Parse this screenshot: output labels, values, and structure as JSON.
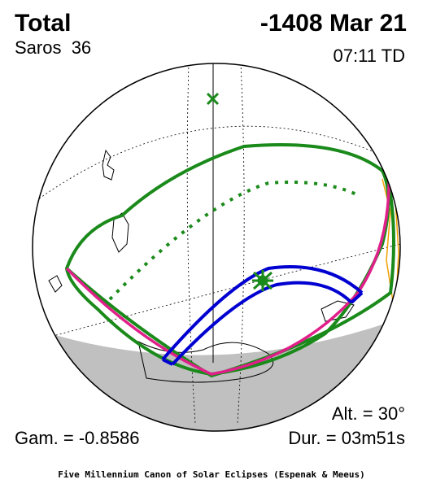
{
  "header": {
    "type": "Total",
    "date": "-1408 Mar 21",
    "saros": "Saros  36",
    "time": "07:11 TD"
  },
  "stats": {
    "altitude": "Alt. = 30°",
    "gamma": "Gam. = -0.8586",
    "duration": "Dur. = 03m51s"
  },
  "footer": "Five Millennium Canon of Solar Eclipses (Espenak & Meeus)"
}
